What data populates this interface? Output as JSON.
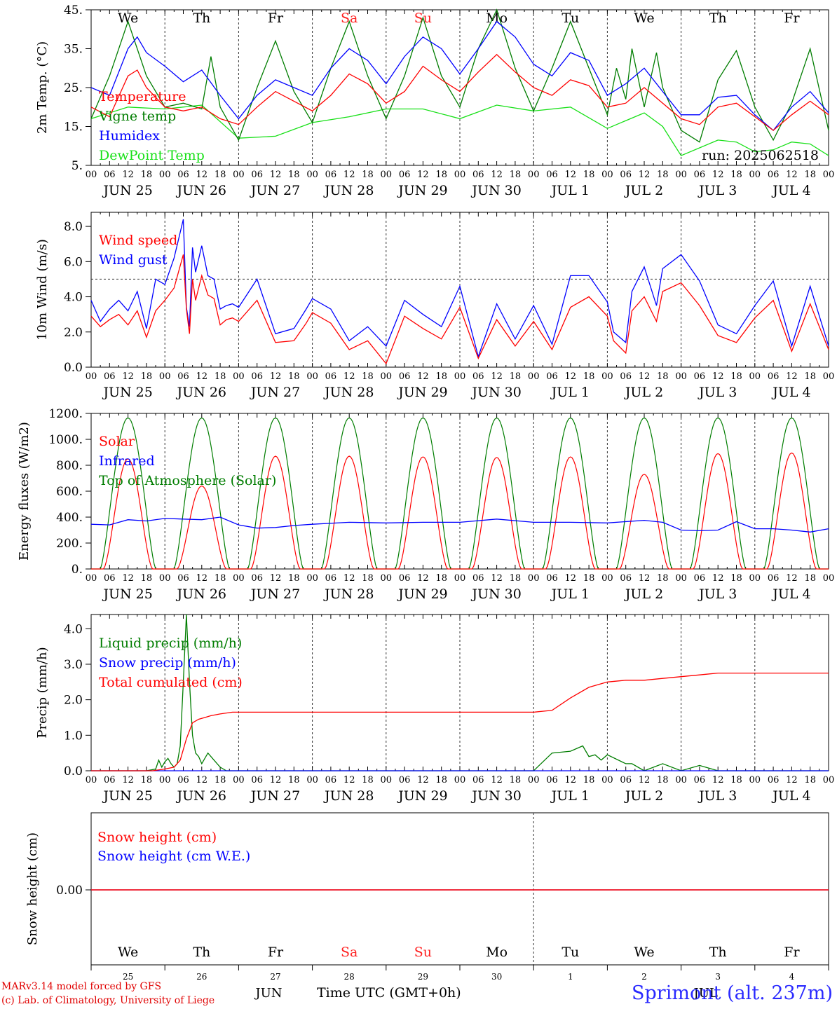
{
  "footer": {
    "model": "MARv3.14 model forced by GFS",
    "credit": "(c) Lab. of Climatology, University of Liege",
    "station": "Sprimont (alt. 237m)",
    "xlabel": "Time UTC (GMT+0h)",
    "bottom_month_left": "JUN",
    "bottom_month_right": "JUL"
  },
  "run_label": "run: 2025062518",
  "days": [
    "JUN 25",
    "JUN 26",
    "JUN 27",
    "JUN 28",
    "JUN 29",
    "JUN 30",
    "JUL  1",
    "JUL  2",
    "JUL  3",
    "JUL  4"
  ],
  "weekdays": [
    "We",
    "Th",
    "Fr",
    "Sa",
    "Su",
    "Mo",
    "Tu",
    "We",
    "Th",
    "Fr"
  ],
  "weekend_color": "#ff2020",
  "weekend_days": [
    "Sa",
    "Su"
  ],
  "hour_ticks": [
    "00",
    "06",
    "12",
    "18"
  ],
  "bottom_day_numbers": [
    "25",
    "26",
    "27",
    "28",
    "29",
    "30",
    "1",
    "2",
    "3",
    "4"
  ],
  "colors": {
    "red": "#ff0000",
    "green": "#007d00",
    "blue": "#0000ff",
    "lightgreen": "#18e018",
    "axis": "#000000"
  },
  "chart_data": [
    {
      "type": "line",
      "ylabel": "2m Temp. (°C)",
      "ylim": [
        5,
        45
      ],
      "yticks": [
        "45.",
        "35.",
        "25.",
        "15.",
        "5."
      ],
      "x_unit": "hours since JUN 25 00 UTC",
      "series": [
        {
          "name": "Temperature",
          "color": "red",
          "x": [
            0,
            6,
            12,
            15,
            18,
            24,
            30,
            36,
            42,
            48,
            54,
            60,
            66,
            72,
            78,
            84,
            90,
            96,
            102,
            108,
            114,
            120,
            126,
            132,
            138,
            144,
            150,
            156,
            162,
            168,
            174,
            180,
            186,
            192,
            198,
            204,
            210,
            216,
            222,
            228,
            234,
            240
          ],
          "values": [
            20,
            17.5,
            28,
            29.5,
            25,
            20,
            19,
            20,
            17,
            15.5,
            20,
            24,
            21.5,
            19,
            23,
            28.5,
            26,
            21,
            24,
            30.5,
            27,
            24,
            29,
            33.5,
            29,
            25,
            23,
            27,
            25.5,
            20,
            21,
            25,
            21,
            17,
            15.5,
            20,
            21,
            17.5,
            14,
            18,
            21.5,
            18
          ]
        },
        {
          "name": "Vigne temp",
          "color": "green",
          "x": [
            0,
            6,
            12,
            18,
            24,
            30,
            36,
            39,
            42,
            48,
            54,
            60,
            66,
            72,
            78,
            84,
            90,
            96,
            102,
            108,
            114,
            120,
            126,
            132,
            138,
            144,
            150,
            156,
            162,
            168,
            171,
            174,
            176,
            180,
            184,
            186,
            192,
            198,
            204,
            210,
            216,
            222,
            228,
            234,
            240
          ],
          "values": [
            17,
            28,
            42,
            28,
            20,
            21,
            19.5,
            33,
            20,
            11.5,
            25,
            37,
            24,
            16,
            30,
            42,
            28,
            17,
            28,
            43,
            28,
            20,
            35,
            45,
            30,
            19,
            30,
            42,
            30,
            18,
            30,
            22,
            35,
            20,
            34,
            25,
            14,
            11,
            27,
            34.5,
            20,
            11.5,
            21,
            35,
            14
          ]
        },
        {
          "name": "Humidex",
          "color": "blue",
          "x": [
            0,
            6,
            12,
            15,
            18,
            24,
            30,
            36,
            42,
            48,
            54,
            60,
            66,
            72,
            78,
            84,
            90,
            96,
            102,
            108,
            114,
            120,
            126,
            132,
            138,
            144,
            150,
            156,
            162,
            168,
            174,
            180,
            186,
            192,
            198,
            204,
            210,
            216,
            222,
            228,
            234,
            240
          ],
          "values": [
            25,
            23,
            35,
            38,
            34,
            30.5,
            26.5,
            29.5,
            23,
            17,
            23,
            27,
            25,
            23,
            30,
            35,
            32,
            26,
            33,
            38,
            35,
            28.5,
            35,
            42,
            38,
            31,
            28,
            34,
            32,
            23,
            26,
            30,
            24,
            18,
            18,
            22.5,
            23,
            18,
            14,
            20,
            24,
            18.5
          ]
        },
        {
          "name": "DewPoint Temp",
          "color": "lightgreen",
          "x": [
            0,
            12,
            24,
            36,
            48,
            60,
            72,
            84,
            96,
            108,
            120,
            132,
            144,
            156,
            168,
            180,
            186,
            192,
            198,
            204,
            210,
            216,
            222,
            228,
            234,
            240
          ],
          "values": [
            17,
            20,
            19.5,
            20.5,
            12,
            12.5,
            16,
            17.5,
            19.5,
            19.5,
            17,
            20.5,
            19,
            20,
            14.5,
            18.5,
            15,
            7.5,
            9.5,
            11.5,
            11,
            8.5,
            9,
            11,
            10.5,
            7.5
          ]
        }
      ]
    },
    {
      "type": "line",
      "ylabel": "10m Wind (m/s)",
      "ylim": [
        0,
        8.8
      ],
      "yticks": [
        "8.0",
        "6.0",
        "4.0",
        "2.0",
        "0.0"
      ],
      "reference_line": 5,
      "x_unit": "hours since JUN 25 00 UTC",
      "series": [
        {
          "name": "Wind speed",
          "color": "red",
          "x": [
            0,
            3,
            6,
            9,
            12,
            15,
            18,
            21,
            24,
            27,
            30,
            31,
            32,
            33,
            34,
            36,
            38,
            40,
            42,
            44,
            46,
            48,
            54,
            60,
            66,
            70,
            72,
            78,
            84,
            90,
            96,
            102,
            108,
            114,
            120,
            126,
            132,
            138,
            144,
            150,
            156,
            162,
            168,
            170,
            174,
            176,
            180,
            184,
            186,
            192,
            198,
            204,
            210,
            216,
            222,
            228,
            234,
            240
          ],
          "values": [
            2.9,
            2.3,
            2.7,
            3.0,
            2.4,
            3.2,
            1.7,
            3.2,
            3.8,
            4.5,
            6.4,
            3.3,
            1.9,
            5.0,
            3.8,
            5.2,
            4.1,
            3.9,
            2.4,
            2.7,
            2.8,
            2.6,
            3.8,
            1.4,
            1.5,
            2.5,
            3.1,
            2.5,
            1.0,
            1.5,
            0.2,
            2.9,
            2.2,
            1.6,
            3.4,
            0.5,
            2.7,
            1.2,
            2.6,
            1.0,
            3.4,
            4.0,
            2.9,
            1.5,
            0.8,
            3.2,
            4.0,
            2.6,
            4.3,
            4.8,
            3.5,
            1.8,
            1.4,
            2.8,
            3.8,
            0.9,
            3.6,
            1.0
          ]
        },
        {
          "name": "Wind gust",
          "color": "blue",
          "x": [
            0,
            3,
            6,
            9,
            12,
            15,
            18,
            21,
            24,
            27,
            30,
            31,
            32,
            33,
            34,
            36,
            38,
            40,
            42,
            44,
            46,
            48,
            54,
            60,
            66,
            70,
            72,
            78,
            84,
            90,
            96,
            102,
            108,
            114,
            120,
            126,
            132,
            138,
            144,
            150,
            156,
            162,
            168,
            170,
            174,
            176,
            180,
            184,
            186,
            192,
            198,
            204,
            210,
            216,
            222,
            228,
            234,
            240
          ],
          "values": [
            3.8,
            2.6,
            3.3,
            3.8,
            3.2,
            4.3,
            2.2,
            5.0,
            4.7,
            6.2,
            8.4,
            3.4,
            2.3,
            6.8,
            5.4,
            6.9,
            5.2,
            5.0,
            3.3,
            3.5,
            3.6,
            3.4,
            5.0,
            1.9,
            2.2,
            3.3,
            3.9,
            3.3,
            1.5,
            2.3,
            1.2,
            3.8,
            3.0,
            2.3,
            4.6,
            0.6,
            3.6,
            1.6,
            3.5,
            1.3,
            5.2,
            5.2,
            3.7,
            2.0,
            1.4,
            4.3,
            5.7,
            3.5,
            5.6,
            6.4,
            4.9,
            2.4,
            1.9,
            3.5,
            4.9,
            1.2,
            4.6,
            1.2
          ]
        }
      ]
    },
    {
      "type": "line",
      "ylabel": "Energy fluxes (W/m2)",
      "ylim": [
        0,
        1200
      ],
      "yticks": [
        "1200.",
        "1000.",
        "800.",
        "600.",
        "400.",
        "200.",
        "0."
      ],
      "x_unit": "hours since JUN 25 00 UTC",
      "daily_top_of_atmosphere_peak": 1165,
      "daily_solar_peak": [
        850,
        640,
        870,
        870,
        865,
        860,
        865,
        730,
        890,
        895
      ],
      "series": [
        {
          "name": "Solar",
          "color": "red"
        },
        {
          "name": "Infrared",
          "color": "blue",
          "x": [
            0,
            6,
            12,
            18,
            24,
            30,
            36,
            42,
            48,
            54,
            60,
            66,
            72,
            84,
            96,
            108,
            120,
            132,
            144,
            156,
            168,
            180,
            186,
            192,
            198,
            204,
            210,
            216,
            222,
            228,
            234,
            240
          ],
          "values": [
            345,
            340,
            380,
            370,
            390,
            385,
            380,
            400,
            340,
            315,
            320,
            335,
            345,
            360,
            355,
            360,
            360,
            385,
            360,
            360,
            355,
            375,
            360,
            300,
            295,
            300,
            365,
            310,
            310,
            300,
            285,
            310
          ]
        },
        {
          "name": "Top of Atmosphere (Solar)",
          "color": "green"
        }
      ]
    },
    {
      "type": "line",
      "ylabel": "Precip (mm/h)",
      "ylim": [
        0,
        4.4
      ],
      "yticks": [
        "4.0",
        "3.0",
        "2.0",
        "1.0",
        "0.0"
      ],
      "x_unit": "hours since JUN 25 00 UTC",
      "series": [
        {
          "name": "Liquid precip (mm/h)",
          "color": "green",
          "x": [
            0,
            18,
            21,
            22,
            23,
            24,
            25,
            26,
            27,
            28,
            29,
            30,
            31,
            32,
            33,
            34,
            35,
            36,
            38,
            40,
            42,
            44,
            46,
            48,
            144,
            150,
            156,
            160,
            162,
            164,
            166,
            168,
            174,
            176,
            180,
            186,
            192,
            198,
            204,
            210,
            216,
            222,
            228,
            234,
            240
          ],
          "values": [
            0,
            0,
            0.05,
            0.3,
            0.1,
            0.25,
            0.35,
            0.2,
            0.1,
            0.2,
            0.7,
            2.5,
            4.4,
            2.5,
            1.0,
            0.5,
            0.4,
            0.2,
            0.5,
            0.3,
            0.1,
            0,
            0,
            0,
            0,
            0.5,
            0.55,
            0.7,
            0.4,
            0.45,
            0.3,
            0.45,
            0.2,
            0.2,
            0,
            0.2,
            0,
            0.15,
            0,
            0,
            0,
            0,
            0,
            0,
            0
          ]
        },
        {
          "name": "Snow precip (mm/h)",
          "color": "blue",
          "x": [
            0,
            240
          ],
          "values": [
            0,
            0
          ]
        },
        {
          "name": "Total cumulated (cm)",
          "color": "red",
          "x": [
            0,
            20,
            24,
            27,
            29,
            31,
            33,
            35,
            37,
            39,
            42,
            46,
            48,
            132,
            138,
            144,
            150,
            156,
            162,
            168,
            174,
            180,
            186,
            192,
            198,
            204,
            216,
            228,
            240
          ],
          "values": [
            0,
            0,
            0.05,
            0.1,
            0.3,
            0.9,
            1.35,
            1.45,
            1.5,
            1.55,
            1.6,
            1.65,
            1.65,
            1.65,
            1.65,
            1.65,
            1.7,
            2.05,
            2.35,
            2.5,
            2.55,
            2.55,
            2.6,
            2.65,
            2.7,
            2.75,
            2.75,
            2.75,
            2.75
          ]
        }
      ]
    },
    {
      "type": "line",
      "ylabel": "Snow height (cm)",
      "yticks": [
        "0.00"
      ],
      "x_unit": "hours since JUN 25 00 UTC",
      "series": [
        {
          "name": "Snow height (cm)",
          "color": "red",
          "x": [
            0,
            240
          ],
          "values": [
            0,
            0
          ]
        },
        {
          "name": "Snow height (cm W.E.)",
          "color": "blue",
          "x": [
            0,
            240
          ],
          "values": [
            0,
            0
          ]
        }
      ]
    }
  ]
}
